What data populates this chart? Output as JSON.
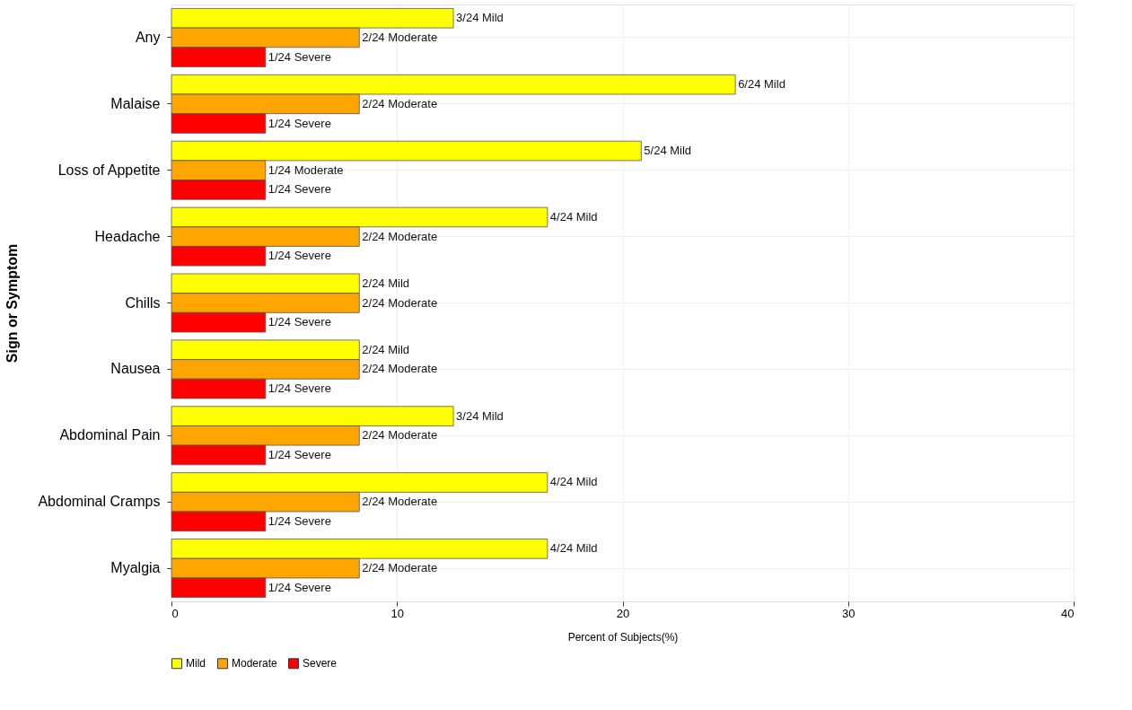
{
  "chart_data": {
    "type": "bar",
    "orientation": "horizontal",
    "xlabel": "Percent of Subjects(%)",
    "ylabel": "Sign or Symptom",
    "categories": [
      "Any",
      "Malaise",
      "Loss of Appetite",
      "Headache",
      "Chills",
      "Nausea",
      "Abdominal Pain",
      "Abdominal Cramps",
      "Myalgia"
    ],
    "series": [
      {
        "name": "Mild",
        "color": "#ffff00",
        "values": [
          12.5,
          25,
          20.83,
          16.67,
          8.33,
          8.33,
          12.5,
          16.67,
          16.67
        ],
        "value_labels": [
          "3/24 Mild",
          "6/24 Mild",
          "5/24 Mild",
          "4/24 Mild",
          "2/24 Mild",
          "2/24 Mild",
          "3/24 Mild",
          "4/24 Mild",
          "4/24 Mild"
        ]
      },
      {
        "name": "Moderate",
        "color": "#ffa500",
        "values": [
          8.33,
          8.33,
          4.17,
          8.33,
          8.33,
          8.33,
          8.33,
          8.33,
          8.33
        ],
        "value_labels": [
          "2/24 Moderate",
          "2/24 Moderate",
          "1/24 Moderate",
          "2/24 Moderate",
          "2/24 Moderate",
          "2/24 Moderate",
          "2/24 Moderate",
          "2/24 Moderate",
          "2/24 Moderate"
        ]
      },
      {
        "name": "Severe",
        "color": "#ff0000",
        "values": [
          4.17,
          4.17,
          4.17,
          4.17,
          4.17,
          4.17,
          4.17,
          4.17,
          4.17
        ],
        "value_labels": [
          "1/24 Severe",
          "1/24 Severe",
          "1/24 Severe",
          "1/24 Severe",
          "1/24 Severe",
          "1/24 Severe",
          "1/24 Severe",
          "1/24 Severe",
          "1/24 Severe"
        ]
      }
    ],
    "xlim": [
      0,
      40
    ],
    "xticks": [
      0,
      10,
      20,
      30,
      40
    ],
    "grid": true,
    "legend": "bottom"
  }
}
